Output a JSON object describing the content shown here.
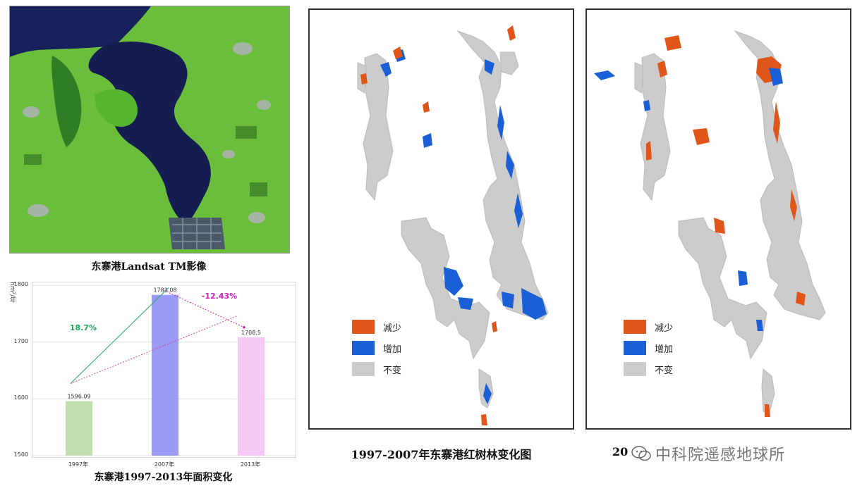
{
  "satellite": {
    "caption": "东寨港Landsat TM影像"
  },
  "colors": {
    "decrease": "#e0561a",
    "increase": "#1a5fd6",
    "unchanged": "#cccccc",
    "water": "#0d1e52",
    "vegetation": "#6cc23a"
  },
  "map_left": {
    "caption": "1997-2007年东寨港红树林变化图",
    "legend": [
      {
        "label": "减少",
        "color": "#e0561a"
      },
      {
        "label": "增加",
        "color": "#1a5fd6"
      },
      {
        "label": "不变",
        "color": "#cccccc"
      }
    ]
  },
  "map_right": {
    "caption_visible": "20",
    "legend": [
      {
        "label": "减少",
        "color": "#e0561a"
      },
      {
        "label": "增加",
        "color": "#1a5fd6"
      },
      {
        "label": "不变",
        "color": "#cccccc"
      }
    ]
  },
  "watermark": {
    "text": "中科院遥感地球所"
  },
  "chart_data": {
    "type": "bar",
    "title": "东寨港1997-2013年面积变化",
    "ylabel": "hm²/年",
    "categories": [
      "1997年",
      "2007年",
      "2013年"
    ],
    "values": [
      1596.09,
      1783.08,
      1708.5
    ],
    "value_labels": [
      "1596.09",
      "1783.08",
      "1708.5"
    ],
    "bar_colors": [
      "#c2dfb0",
      "#9b9bf7",
      "#f7c9f7"
    ],
    "ylim": [
      1500,
      1800
    ],
    "yticks": [
      1500,
      1600,
      1700,
      1800
    ],
    "annotations": [
      {
        "text": "18.7%",
        "color": "#1aaa55"
      },
      {
        "text": "-12.43%",
        "color": "#d020c0"
      }
    ]
  }
}
